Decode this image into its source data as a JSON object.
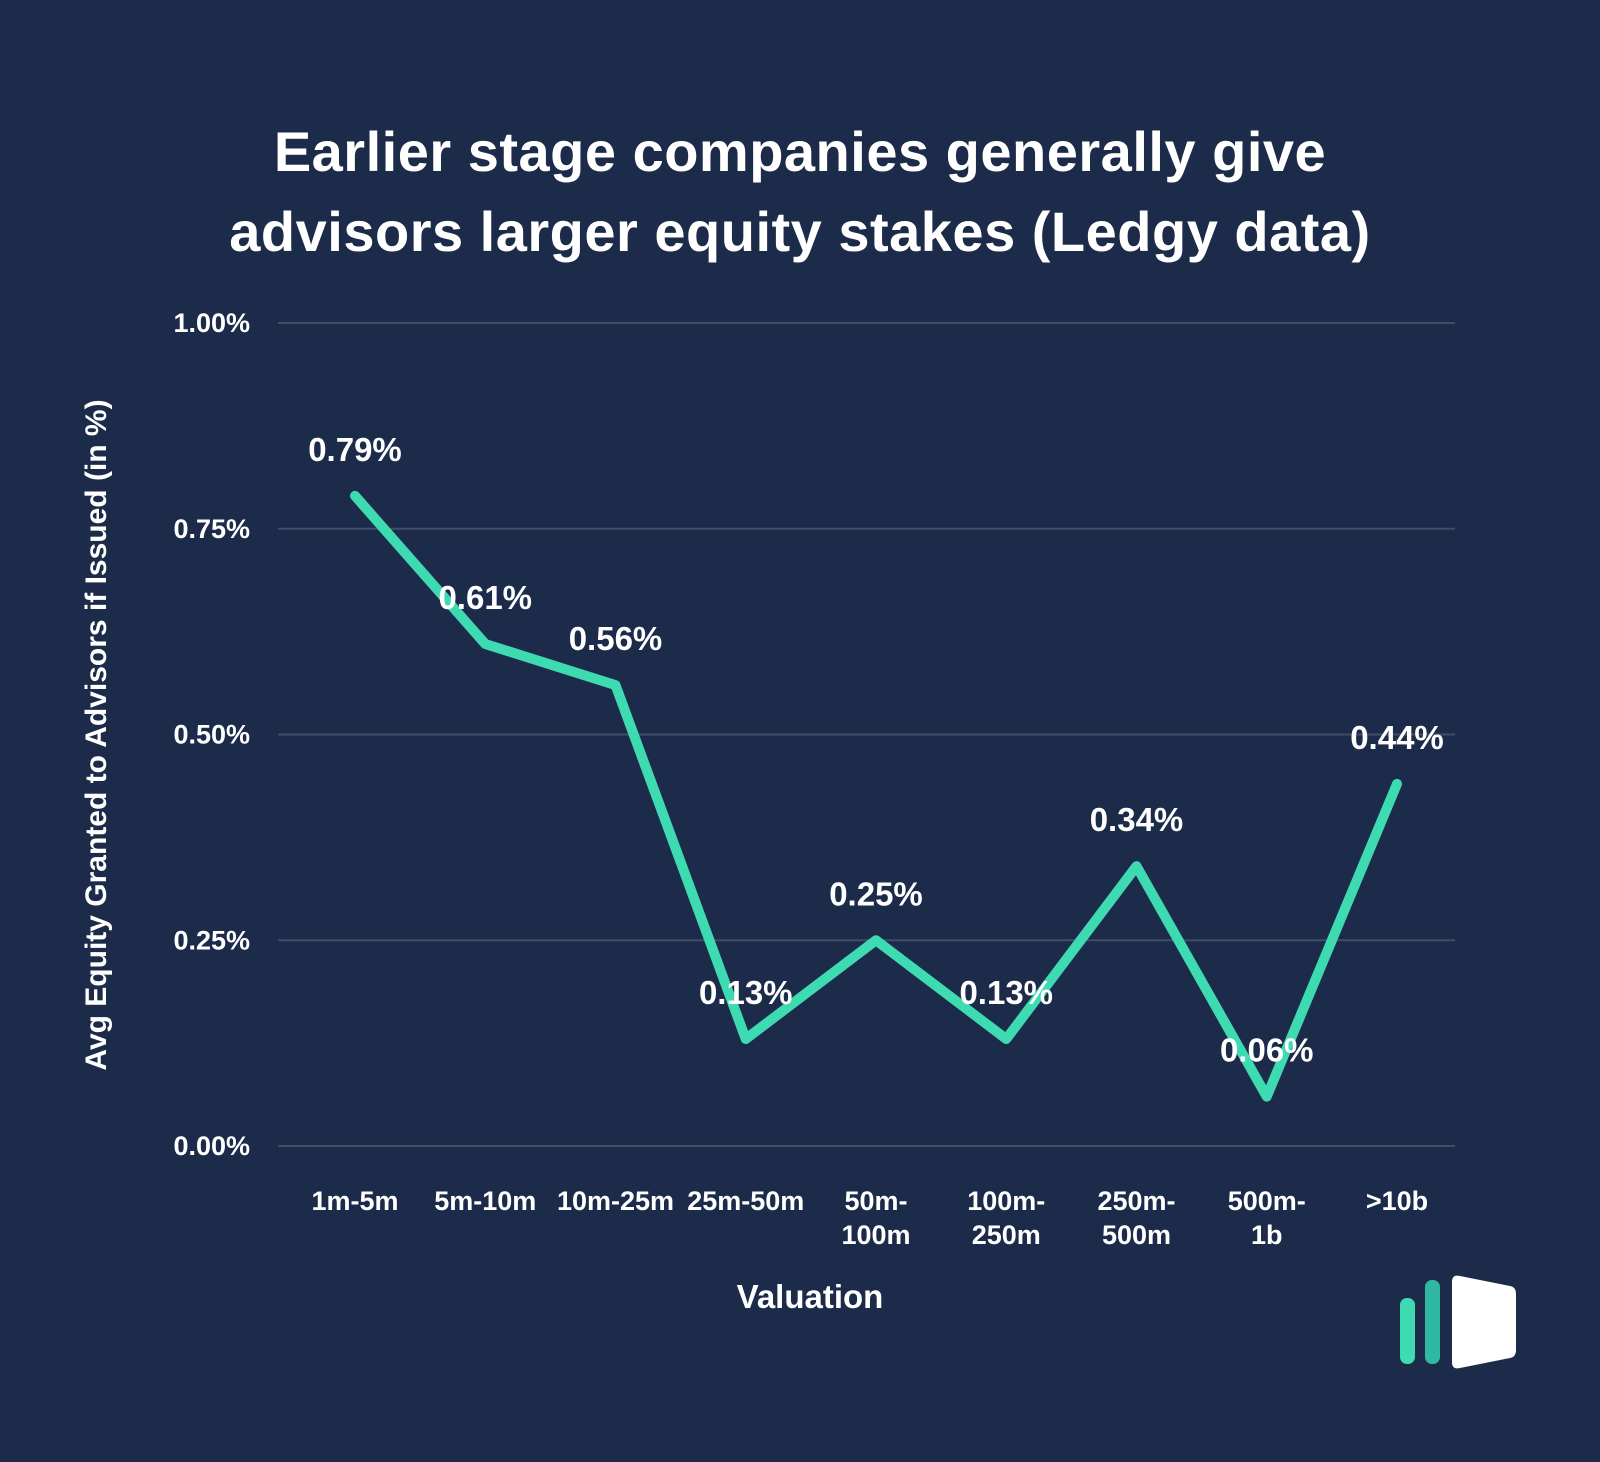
{
  "title": {
    "line1": "Earlier stage companies generally give",
    "line2": "advisors larger equity stakes (Ledgy data)"
  },
  "chart_data": {
    "type": "line",
    "title": "Earlier stage companies generally give advisors larger equity stakes (Ledgy data)",
    "categories": [
      "1m-5m",
      "5m-10m",
      "10m-25m",
      "25m-50m",
      "50m-\n100m",
      "100m-\n250m",
      "250m-\n500m",
      "500m-\n1b",
      ">10b"
    ],
    "values": [
      0.79,
      0.61,
      0.56,
      0.13,
      0.25,
      0.13,
      0.34,
      0.06,
      0.44
    ],
    "point_labels": [
      "0.79%",
      "0.61%",
      "0.56%",
      "0.13%",
      "0.25%",
      "0.13%",
      "0.34%",
      "0.06%",
      "0.44%"
    ],
    "xlabel": "Valuation",
    "ylabel": "Avg Equity Granted to Advisors if Issued (in %)",
    "ylim": [
      0,
      1.0
    ],
    "yticks": [
      0,
      0.25,
      0.5,
      0.75,
      1.0
    ],
    "ytick_labels": [
      "0.00%",
      "0.25%",
      "0.50%",
      "0.75%",
      "1.00%"
    ],
    "grid": true,
    "legend": "none",
    "line_color": "#3EDBB2",
    "background": "#1C2B4A",
    "text_color": "#FFFFFF",
    "gridline_color": "rgba(255,255,255,0.16)"
  },
  "logo": {
    "name": "ledgy-logo",
    "bar_color_1": "#3EDBB2",
    "bar_color_2": "#2FB8A2",
    "book_color": "#FFFFFF"
  }
}
